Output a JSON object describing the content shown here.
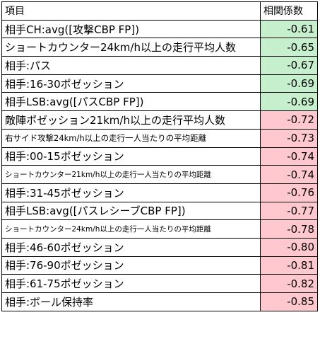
{
  "header": {
    "item": "項目",
    "coef": "相関係数"
  },
  "colors": {
    "positive_fill": "#c6efce",
    "negative_fill": "#ffc7ce"
  },
  "rows": [
    {
      "item": "相手CH:avg([攻撃CBP FP])",
      "value": "-0.61",
      "fill": "green"
    },
    {
      "item": "ショートカウンター24km/h以上の走行平均人数",
      "value": "-0.65",
      "fill": "green"
    },
    {
      "item": "相手:パス",
      "value": "-0.67",
      "fill": "green"
    },
    {
      "item": "相手:16-30ポゼッション",
      "value": "-0.69",
      "fill": "green"
    },
    {
      "item": "相手LSB:avg([パスCBP FP])",
      "value": "-0.69",
      "fill": "green"
    },
    {
      "item": "敵陣ポゼッション21km/h以上の走行平均人数",
      "value": "-0.72",
      "fill": "red"
    },
    {
      "item": "右サイド攻撃24km/h以上の走行一人当たりの平均距離",
      "value": "-0.73",
      "fill": "red"
    },
    {
      "item": "相手:00-15ポゼッション",
      "value": "-0.74",
      "fill": "red"
    },
    {
      "item": "ショートカウンター21km/h以上の走行一人当たりの平均距離",
      "value": "-0.74",
      "fill": "red"
    },
    {
      "item": "相手:31-45ポゼッション",
      "value": "-0.76",
      "fill": "red"
    },
    {
      "item": "相手LSB:avg([パスレシーブCBP FP])",
      "value": "-0.77",
      "fill": "red"
    },
    {
      "item": "ショートカウンター24km/h以上の走行一人当たりの平均距離",
      "value": "-0.78",
      "fill": "red"
    },
    {
      "item": "相手:46-60ポゼッション",
      "value": "-0.80",
      "fill": "red"
    },
    {
      "item": "相手:76-90ポゼッション",
      "value": "-0.81",
      "fill": "red"
    },
    {
      "item": "相手:61-75ポゼッション",
      "value": "-0.82",
      "fill": "red"
    },
    {
      "item": "相手:ボール保持率",
      "value": "-0.85",
      "fill": "red"
    }
  ]
}
